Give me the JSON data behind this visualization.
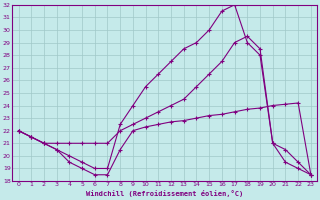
{
  "xlabel": "Windchill (Refroidissement éolien,°C)",
  "ylabel": "",
  "xlim": [
    -0.5,
    23.5
  ],
  "ylim": [
    18,
    32
  ],
  "bg_color": "#c5eaea",
  "line_color": "#800080",
  "grid_color": "#a0c8c8",
  "line1_x": [
    0,
    1,
    2,
    3,
    4,
    5,
    6,
    7,
    8,
    9,
    10,
    11,
    12,
    13,
    14,
    15,
    16,
    17,
    18,
    19,
    20,
    21,
    22,
    23
  ],
  "line1_y": [
    22.0,
    21.5,
    21.0,
    20.5,
    19.5,
    19.0,
    18.5,
    18.5,
    20.5,
    22.0,
    22.3,
    22.5,
    22.7,
    22.8,
    23.0,
    23.2,
    23.3,
    23.5,
    23.7,
    23.8,
    24.0,
    24.1,
    24.2,
    18.5
  ],
  "line2_x": [
    0,
    1,
    2,
    3,
    4,
    5,
    6,
    7,
    8,
    9,
    10,
    11,
    12,
    13,
    14,
    15,
    16,
    17,
    18,
    19,
    20,
    21,
    22,
    23
  ],
  "line2_y": [
    22.0,
    21.5,
    21.0,
    20.5,
    20.0,
    19.5,
    19.0,
    19.0,
    22.5,
    24.0,
    25.5,
    26.5,
    27.5,
    28.5,
    29.0,
    30.0,
    31.5,
    32.0,
    29.0,
    28.0,
    21.0,
    20.5,
    19.5,
    18.5
  ],
  "line3_x": [
    0,
    1,
    2,
    3,
    4,
    5,
    6,
    7,
    8,
    9,
    10,
    11,
    12,
    13,
    14,
    15,
    16,
    17,
    18,
    19,
    20,
    21,
    22,
    23
  ],
  "line3_y": [
    22.0,
    21.5,
    21.0,
    21.0,
    21.0,
    21.0,
    21.0,
    21.0,
    22.0,
    22.5,
    23.0,
    23.5,
    24.0,
    24.5,
    25.5,
    26.5,
    27.5,
    29.0,
    29.5,
    28.5,
    21.0,
    19.5,
    19.0,
    18.5
  ]
}
